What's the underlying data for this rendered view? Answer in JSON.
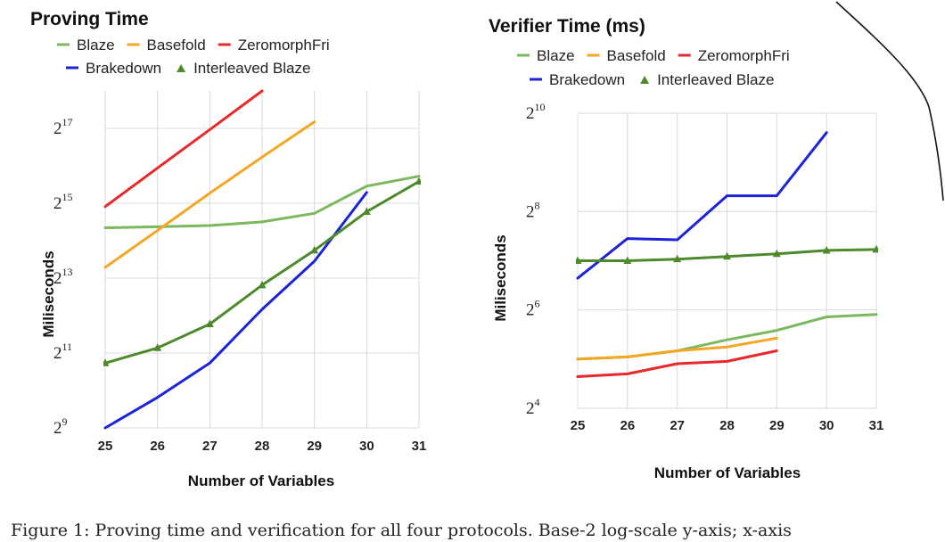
{
  "caption": "Figure 1: Proving time and verification for all four protocols. Base-2 log-scale y-axis; x-axis",
  "chart_data": [
    {
      "type": "line",
      "title": "Proving Time",
      "xlabel": "Number of Variables",
      "ylabel": "Miliseconds",
      "yscale": "log2",
      "x": [
        25,
        26,
        27,
        28,
        29,
        30,
        31
      ],
      "ylim_exp": [
        9,
        18
      ],
      "yticks_exp": [
        9,
        11,
        13,
        15,
        17
      ],
      "legend_position": "top",
      "series": [
        {
          "name": "Blaze",
          "color": "#7cb85f",
          "marker": "none",
          "x": [
            25,
            26,
            27,
            28,
            29,
            30,
            31
          ],
          "y": [
            20800,
            21200,
            21700,
            23200,
            27200,
            45000,
            54000
          ]
        },
        {
          "name": "Basefold",
          "color": "#f5a623",
          "marker": "none",
          "x": [
            25,
            26,
            27,
            28,
            29
          ],
          "y": [
            10000,
            19800,
            39500,
            77000,
            148000
          ]
        },
        {
          "name": "ZeromorphFri",
          "color": "#e8292b",
          "marker": "none",
          "x": [
            25,
            26,
            27,
            28
          ],
          "y": [
            30800,
            63000,
            128000,
            262144
          ]
        },
        {
          "name": "Brakedown",
          "color": "#1c24d6",
          "marker": "none",
          "x": [
            25,
            26,
            27,
            28,
            29,
            30
          ],
          "y": [
            512,
            900,
            1700,
            4600,
            11200,
            40000
          ]
        },
        {
          "name": "Interleaved Blaze",
          "color": "#4d8a2c",
          "marker": "triangle",
          "x": [
            25,
            26,
            27,
            28,
            29,
            30,
            31
          ],
          "y": [
            1700,
            2250,
            3500,
            7200,
            13700,
            28000,
            49000
          ]
        }
      ],
      "legend_layout": [
        [
          0,
          1,
          2
        ],
        [
          3,
          4
        ]
      ]
    },
    {
      "type": "line",
      "title": "Verifier Time (ms)",
      "xlabel": "Number of Variables",
      "ylabel": "Miliseconds",
      "yscale": "log2",
      "x": [
        25,
        26,
        27,
        28,
        29,
        30,
        31
      ],
      "ylim_exp": [
        4,
        10
      ],
      "yticks_exp": [
        4,
        6,
        8,
        10
      ],
      "legend_position": "top",
      "series": [
        {
          "name": "Blaze",
          "color": "#7cb85f",
          "marker": "none",
          "x": [
            25,
            26,
            27,
            28,
            29,
            30,
            31
          ],
          "y": [
            32,
            33,
            36,
            42,
            48,
            58,
            60
          ]
        },
        {
          "name": "Basefold",
          "color": "#f5a623",
          "marker": "none",
          "x": [
            25,
            26,
            27,
            28,
            29
          ],
          "y": [
            32,
            33,
            36,
            38,
            43
          ]
        },
        {
          "name": "ZeromorphFri",
          "color": "#e8292b",
          "marker": "none",
          "x": [
            25,
            26,
            27,
            28,
            29
          ],
          "y": [
            25,
            26,
            30,
            31,
            36
          ]
        },
        {
          "name": "Brakedown",
          "color": "#1c24d6",
          "marker": "none",
          "x": [
            25,
            26,
            27,
            28,
            29,
            30
          ],
          "y": [
            100,
            175,
            172,
            320,
            320,
            780
          ]
        },
        {
          "name": "Interleaved Blaze",
          "color": "#4d8a2c",
          "marker": "triangle",
          "x": [
            25,
            26,
            27,
            28,
            29,
            30,
            31
          ],
          "y": [
            128,
            128,
            131,
            136,
            141,
            148,
            150
          ]
        }
      ],
      "legend_layout": [
        [
          0,
          1,
          2
        ],
        [
          3,
          4
        ]
      ]
    }
  ]
}
